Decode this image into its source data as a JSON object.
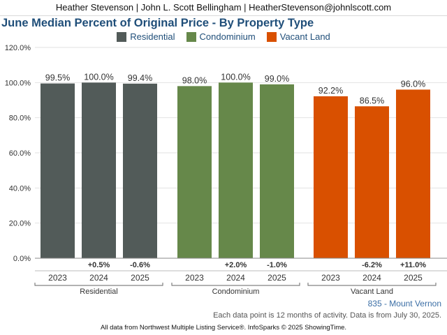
{
  "header": {
    "contact": "Heather Stevenson | John L. Scott Bellingham | HeatherStevenson@johnlscott.com"
  },
  "footer": {
    "region": "835 - Mount Vernon",
    "note": "Each data point is 12 months of activity. Data is from July 30, 2025.",
    "source": "All data from Northwest Multiple Listing Service®. InfoSparks © 2025 ShowingTime."
  },
  "chart_data": {
    "type": "bar",
    "title": "June Median Percent of Original Price - By Property Type",
    "xlabel": "",
    "ylabel": "",
    "ylim": [
      0,
      120
    ],
    "yticks": [
      "0.0%",
      "20.0%",
      "40.0%",
      "60.0%",
      "80.0%",
      "100.0%",
      "120.0%"
    ],
    "ytick_values": [
      0,
      20,
      40,
      60,
      80,
      100,
      120
    ],
    "grid": true,
    "legend_position": "top-center",
    "categories": [
      "2023",
      "2024",
      "2025"
    ],
    "series": [
      {
        "name": "Residential",
        "color": "#525b59",
        "values": [
          99.5,
          100.0,
          99.4
        ],
        "labels": [
          "99.5%",
          "100.0%",
          "99.4%"
        ],
        "changes": [
          "",
          "+0.5%",
          "-0.6%"
        ]
      },
      {
        "name": "Condominium",
        "color": "#66884a",
        "values": [
          98.0,
          100.0,
          99.0
        ],
        "labels": [
          "98.0%",
          "100.0%",
          "99.0%"
        ],
        "changes": [
          "",
          "+2.0%",
          "-1.0%"
        ]
      },
      {
        "name": "Vacant Land",
        "color": "#d95000",
        "values": [
          92.2,
          86.5,
          96.0
        ],
        "labels": [
          "92.2%",
          "86.5%",
          "96.0%"
        ],
        "changes": [
          "",
          "-6.2%",
          "+11.0%"
        ]
      }
    ]
  }
}
